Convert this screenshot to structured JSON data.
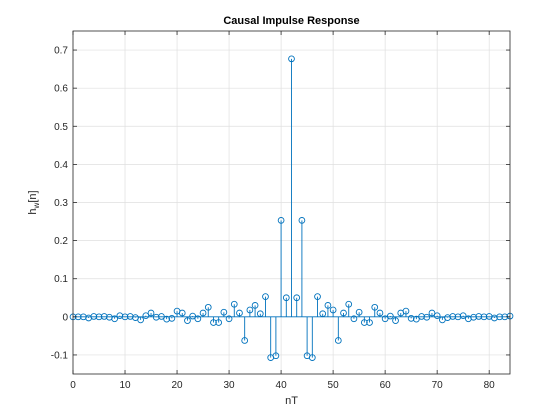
{
  "chart_data": {
    "type": "stem",
    "title": "Causal Impulse Response",
    "xlabel": "nT",
    "ylabel_main": "h",
    "ylabel_sub": "w",
    "ylabel_suffix": "[n]",
    "xlim": [
      0,
      84
    ],
    "ylim": [
      -0.15,
      0.75
    ],
    "xticks": [
      0,
      10,
      20,
      30,
      40,
      50,
      60,
      70,
      80
    ],
    "yticks": [
      -0.1,
      0,
      0.1,
      0.2,
      0.3,
      0.4,
      0.5,
      0.6,
      0.7
    ],
    "xtick_labels": [
      "0",
      "10",
      "20",
      "30",
      "40",
      "50",
      "60",
      "70",
      "80"
    ],
    "ytick_labels": [
      "-0.1",
      "0",
      "0.1",
      "0.2",
      "0.3",
      "0.4",
      "0.5",
      "0.6",
      "0.7"
    ],
    "grid": true,
    "color": "#0072BD",
    "x": [
      0,
      1,
      2,
      3,
      4,
      5,
      6,
      7,
      8,
      9,
      10,
      11,
      12,
      13,
      14,
      15,
      16,
      17,
      18,
      19,
      20,
      21,
      22,
      23,
      24,
      25,
      26,
      27,
      28,
      29,
      30,
      31,
      32,
      33,
      34,
      35,
      36,
      37,
      38,
      39,
      40,
      41,
      42,
      43,
      44,
      45,
      46,
      47,
      48,
      49,
      50,
      51,
      52,
      53,
      54,
      55,
      56,
      57,
      58,
      59,
      60,
      61,
      62,
      63,
      64,
      65,
      66,
      67,
      68,
      69,
      70,
      71,
      72,
      73,
      74,
      75,
      76,
      77,
      78,
      79,
      80,
      81,
      82,
      83,
      84
    ],
    "y": [
      0,
      0,
      0,
      -0.003,
      0.001,
      0,
      0.001,
      -0.001,
      -0.005,
      0.003,
      0,
      0.001,
      -0.002,
      -0.008,
      0.003,
      0.01,
      -0.001,
      0.001,
      -0.006,
      -0.004,
      0.015,
      0.01,
      -0.01,
      0.002,
      -0.005,
      0.01,
      0.025,
      -0.015,
      -0.015,
      0.012,
      -0.005,
      0.033,
      0.01,
      -0.062,
      0.018,
      0.03,
      0.008,
      0.053,
      -0.107,
      -0.102,
      0.253,
      0.05,
      0.677,
      0.05,
      0.253,
      -0.102,
      -0.107,
      0.053,
      0.008,
      0.03,
      0.018,
      -0.062,
      0.01,
      0.033,
      -0.005,
      0.012,
      -0.015,
      -0.015,
      0.025,
      0.01,
      -0.005,
      0.002,
      -0.01,
      0.01,
      0.015,
      -0.004,
      -0.006,
      0.001,
      -0.001,
      0.01,
      0.003,
      -0.008,
      -0.002,
      0.001,
      0,
      0.003,
      -0.005,
      -0.001,
      0.001,
      0,
      0.001,
      -0.003,
      0,
      0,
      0.002
    ]
  }
}
